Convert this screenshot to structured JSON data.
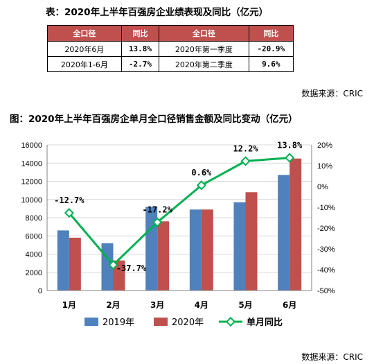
{
  "table_caption": "表：2020年上半年百强房企业绩表现及同比（亿元）",
  "table": {
    "headers": [
      "全口径",
      "同比",
      "全口径",
      "同比"
    ],
    "rows": [
      [
        "2020年6月",
        "13.8%",
        "2020年第一季度",
        "-20.9%"
      ],
      [
        "2020年1-6月",
        "-2.7%",
        "2020年第二季度",
        "9.6%"
      ]
    ]
  },
  "source_text": "数据来源：CRIC",
  "chart_caption": "图：2020年上半年百强房企单月全口径销售金额及同比变动（亿元）",
  "source_text_bottom": "数据来源：CRIC",
  "chart_data": {
    "type": "bar",
    "categories": [
      "1月",
      "2月",
      "3月",
      "4月",
      "5月",
      "6月"
    ],
    "series": [
      {
        "name": "2019年",
        "type": "bar",
        "axis": "left",
        "color": "#4f81bd",
        "values": [
          6600,
          5200,
          9200,
          8900,
          9700,
          12700
        ]
      },
      {
        "name": "2020年",
        "type": "bar",
        "axis": "left",
        "color": "#c0504d",
        "values": [
          5800,
          3300,
          7600,
          8900,
          10800,
          14500
        ]
      },
      {
        "name": "单月同比",
        "type": "line",
        "axis": "right",
        "color": "#00b050",
        "values": [
          -12.7,
          -37.7,
          -17.2,
          0.6,
          12.2,
          13.8
        ],
        "labels": [
          "-12.7%",
          "-37.7%",
          "-17.2%",
          "0.6%",
          "12.2%",
          "13.8%"
        ]
      }
    ],
    "ylim_left": [
      0,
      16000
    ],
    "yticks_left": [
      "0",
      "2000",
      "4000",
      "6000",
      "8000",
      "10000",
      "12000",
      "14000",
      "16000"
    ],
    "ylim_right": [
      -50,
      20
    ],
    "yticks_right": [
      "-50%",
      "-40%",
      "-30%",
      "-20%",
      "-10%",
      "0%",
      "10%",
      "20%"
    ],
    "legend_position": "bottom"
  }
}
